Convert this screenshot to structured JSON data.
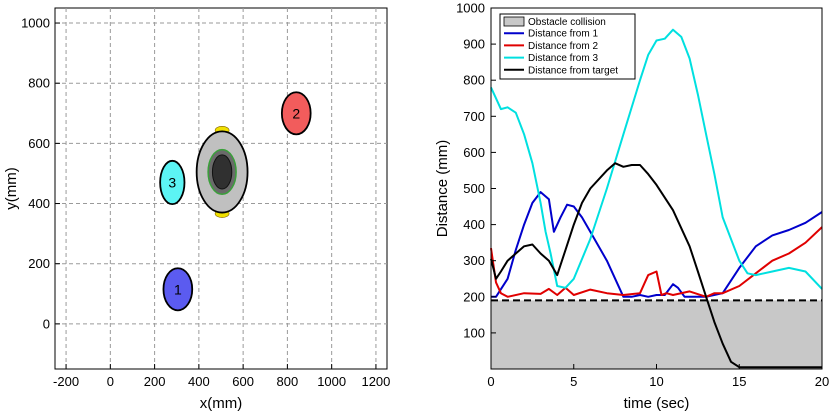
{
  "chart_data": [
    {
      "type": "scatter",
      "subtype": "workspace-map",
      "xlabel": "x(mm)",
      "ylabel": "y(mm)",
      "xlim": [
        -250,
        1250
      ],
      "ylim": [
        -150,
        1050
      ],
      "xticks": [
        -200,
        0,
        200,
        400,
        600,
        800,
        1000,
        1200
      ],
      "yticks": [
        0,
        200,
        400,
        600,
        800,
        1000
      ],
      "grid": true,
      "objects": [
        {
          "label": "1",
          "x": 305,
          "y": 115,
          "rx": 65,
          "ry": 70,
          "color": "#5b5bf0"
        },
        {
          "label": "2",
          "x": 840,
          "y": 700,
          "rx": 65,
          "ry": 70,
          "color": "#f25c5c"
        },
        {
          "label": "3",
          "x": 280,
          "y": 470,
          "rx": 55,
          "ry": 72,
          "color": "#5cf4f4"
        }
      ],
      "robot": {
        "x": 505,
        "y": 505,
        "rx": 115,
        "ry": 135,
        "body_color": "#c0c0c0",
        "marker_color": "#f0e000",
        "core_color": "#303030",
        "ring_color": "#3aa03a"
      }
    },
    {
      "type": "line",
      "xlabel": "time (sec)",
      "ylabel": "Distance (mm)",
      "xlim": [
        0,
        20
      ],
      "ylim": [
        0,
        1000
      ],
      "xticks": [
        0,
        5,
        10,
        15,
        20
      ],
      "yticks": [
        100,
        200,
        300,
        400,
        500,
        600,
        700,
        800,
        900,
        1000
      ],
      "grid": false,
      "legend_position": "top-left",
      "obstacle": {
        "name": "Obstacle collision",
        "threshold": 190,
        "color": "#c8c8c8"
      },
      "series": [
        {
          "name": "Distance from 1",
          "color": "#0000cc",
          "x": [
            0,
            0.3,
            1,
            1.5,
            2,
            2.5,
            3,
            3.5,
            3.8,
            4.2,
            4.6,
            5,
            5.5,
            6,
            7,
            8,
            8.5,
            9,
            9.5,
            10,
            10.5,
            11,
            11.3,
            11.7,
            12,
            13,
            14,
            15,
            16,
            17,
            18,
            19,
            20
          ],
          "y": [
            200,
            200,
            250,
            330,
            400,
            460,
            490,
            470,
            380,
            420,
            455,
            450,
            420,
            380,
            300,
            200,
            200,
            205,
            200,
            205,
            205,
            235,
            225,
            200,
            200,
            200,
            210,
            280,
            340,
            370,
            385,
            405,
            435
          ]
        },
        {
          "name": "Distance from 2",
          "color": "#e00000",
          "x": [
            0,
            0.3,
            0.6,
            1,
            2,
            3,
            3.5,
            4,
            4.5,
            5,
            6,
            7,
            8,
            9,
            9.5,
            10,
            10.3,
            10.6,
            11,
            12,
            13,
            13.5,
            14,
            15,
            16,
            17,
            18,
            19,
            20
          ],
          "y": [
            335,
            240,
            210,
            200,
            210,
            208,
            222,
            205,
            225,
            205,
            220,
            210,
            205,
            210,
            260,
            270,
            205,
            210,
            205,
            215,
            200,
            210,
            210,
            230,
            265,
            300,
            320,
            350,
            393
          ]
        },
        {
          "name": "Distance from 3",
          "color": "#00e0e0",
          "x": [
            0,
            0.3,
            0.6,
            1,
            1.5,
            2,
            2.5,
            3,
            3.3,
            3.6,
            4,
            4.5,
            5,
            6,
            7,
            8,
            9,
            9.5,
            10,
            10.5,
            11,
            11.5,
            12,
            12.5,
            13,
            13.5,
            14,
            15,
            15.5,
            16,
            17,
            18,
            19,
            20
          ],
          "y": [
            780,
            750,
            720,
            725,
            710,
            650,
            570,
            460,
            380,
            320,
            230,
            225,
            250,
            360,
            500,
            650,
            800,
            870,
            910,
            915,
            940,
            920,
            860,
            760,
            650,
            540,
            420,
            300,
            265,
            260,
            270,
            280,
            270,
            222
          ]
        },
        {
          "name": "Distance from target",
          "color": "#000000",
          "x": [
            0,
            0.3,
            0.6,
            1,
            1.5,
            2,
            2.5,
            3,
            3.5,
            4,
            4.5,
            5,
            5.5,
            6,
            7,
            7.5,
            8,
            8.5,
            9,
            9.5,
            10,
            11,
            12,
            12.5,
            13,
            13.5,
            14,
            14.5,
            15,
            16,
            17,
            18,
            19,
            20
          ],
          "y": [
            305,
            250,
            270,
            300,
            320,
            340,
            345,
            320,
            300,
            260,
            330,
            400,
            460,
            500,
            550,
            570,
            560,
            565,
            565,
            540,
            510,
            440,
            340,
            270,
            200,
            130,
            70,
            20,
            5,
            5,
            5,
            5,
            5,
            5
          ]
        }
      ]
    }
  ]
}
